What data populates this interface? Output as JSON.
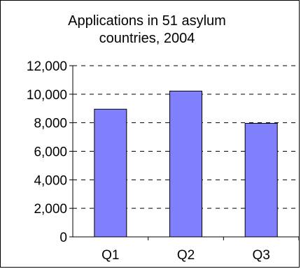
{
  "chart_data": {
    "type": "bar",
    "title": "Applications in 51 asylum countries, 2004",
    "xlabel": "",
    "ylabel": "",
    "categories": [
      "Q1",
      "Q2",
      "Q3"
    ],
    "values": [
      8950,
      10220,
      7960
    ],
    "ylim": [
      0,
      12000
    ],
    "yticks": [
      0,
      2000,
      4000,
      6000,
      8000,
      10000,
      12000
    ],
    "ytick_labels": [
      "0",
      "2,000",
      "4,000",
      "6,000",
      "8,000",
      "10,000",
      "12,000"
    ],
    "grid": true,
    "grid_style": "dashed",
    "legend": "none",
    "bar_color": "#8080ff",
    "bar_edge_color": "#000000"
  }
}
